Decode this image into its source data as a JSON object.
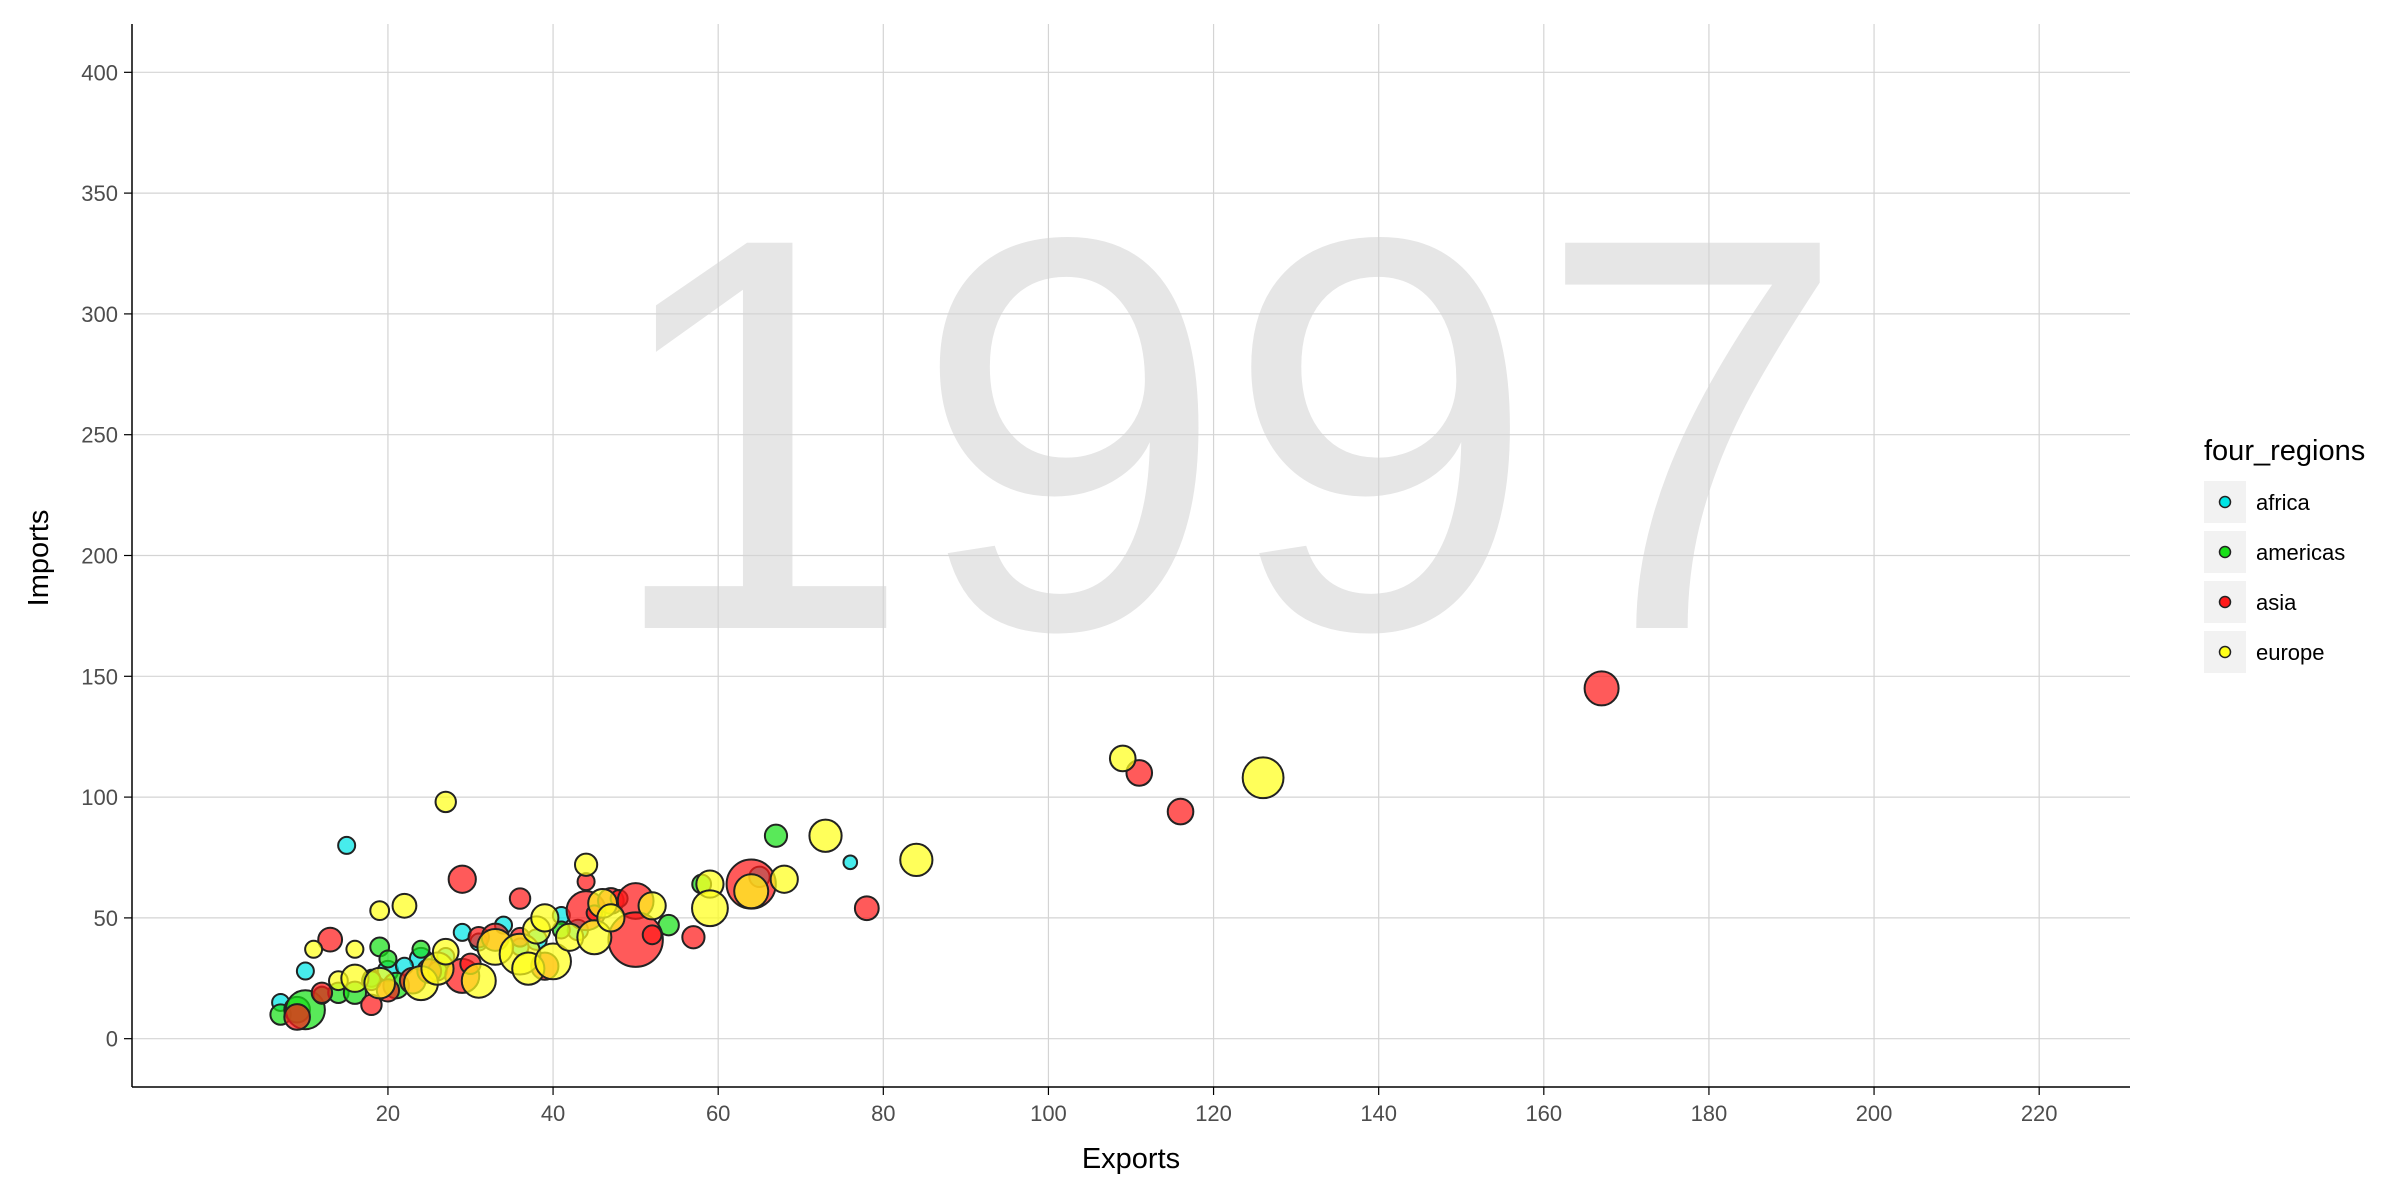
{
  "chart_data": {
    "type": "scatter",
    "year": "1997",
    "xlabel": "Exports",
    "ylabel": "Imports",
    "xlim": [
      -11,
      231
    ],
    "ylim": [
      -20,
      420
    ],
    "xticks": [
      20,
      40,
      60,
      80,
      100,
      120,
      140,
      160,
      180,
      200,
      220
    ],
    "yticks": [
      0,
      50,
      100,
      150,
      200,
      250,
      300,
      350,
      400
    ],
    "grid": true,
    "legend": {
      "title": "four_regions",
      "placement": "right"
    },
    "colors": {
      "africa": "#00e5e5",
      "americas": "#19e019",
      "asia": "#ff1a1a",
      "europe": "#ffff1a"
    },
    "series": [
      {
        "name": "africa",
        "color": "#00e5e5",
        "points": [
          {
            "x": 7,
            "y": 15,
            "s": 1
          },
          {
            "x": 10,
            "y": 28,
            "s": 1
          },
          {
            "x": 15,
            "y": 80,
            "s": 1
          },
          {
            "x": 20,
            "y": 28,
            "s": 1.2
          },
          {
            "x": 24,
            "y": 33,
            "s": 1.3
          },
          {
            "x": 29,
            "y": 44,
            "s": 1
          },
          {
            "x": 34,
            "y": 47,
            "s": 1
          },
          {
            "x": 38,
            "y": 41,
            "s": 1.2
          },
          {
            "x": 41,
            "y": 51,
            "s": 1
          },
          {
            "x": 43,
            "y": 45,
            "s": 1.2
          },
          {
            "x": 65,
            "y": 67,
            "s": 1.2
          },
          {
            "x": 76,
            "y": 73,
            "s": 0.8
          },
          {
            "x": 12,
            "y": 18,
            "s": 1
          },
          {
            "x": 18,
            "y": 25,
            "s": 1
          },
          {
            "x": 22,
            "y": 30,
            "s": 1
          },
          {
            "x": 27,
            "y": 34,
            "s": 1
          },
          {
            "x": 31,
            "y": 40,
            "s": 1
          },
          {
            "x": 36,
            "y": 38,
            "s": 1
          }
        ]
      },
      {
        "name": "americas",
        "color": "#19e019",
        "points": [
          {
            "x": 7,
            "y": 10,
            "s": 1.2
          },
          {
            "x": 9,
            "y": 12,
            "s": 1.5
          },
          {
            "x": 10,
            "y": 12,
            "s": 2.3
          },
          {
            "x": 12,
            "y": 18,
            "s": 1
          },
          {
            "x": 14,
            "y": 19,
            "s": 1.2
          },
          {
            "x": 16,
            "y": 19,
            "s": 1.3
          },
          {
            "x": 19,
            "y": 38,
            "s": 1.1
          },
          {
            "x": 20,
            "y": 33,
            "s": 1
          },
          {
            "x": 21,
            "y": 22,
            "s": 1.5
          },
          {
            "x": 24,
            "y": 37,
            "s": 1
          },
          {
            "x": 41,
            "y": 45,
            "s": 1
          },
          {
            "x": 54,
            "y": 47,
            "s": 1.2
          },
          {
            "x": 58,
            "y": 64,
            "s": 1.1
          },
          {
            "x": 67,
            "y": 84,
            "s": 1.3
          },
          {
            "x": 18,
            "y": 24,
            "s": 1.1
          },
          {
            "x": 26,
            "y": 28,
            "s": 1.1
          }
        ]
      },
      {
        "name": "asia",
        "color": "#ff1a1a",
        "points": [
          {
            "x": 9,
            "y": 9,
            "s": 1.5
          },
          {
            "x": 12,
            "y": 19,
            "s": 1.2
          },
          {
            "x": 13,
            "y": 41,
            "s": 1.4
          },
          {
            "x": 18,
            "y": 14,
            "s": 1.2
          },
          {
            "x": 20,
            "y": 20,
            "s": 1.3
          },
          {
            "x": 23,
            "y": 24,
            "s": 1.5
          },
          {
            "x": 25,
            "y": 28,
            "s": 1.4
          },
          {
            "x": 29,
            "y": 66,
            "s": 1.6
          },
          {
            "x": 29,
            "y": 26,
            "s": 2
          },
          {
            "x": 30,
            "y": 31,
            "s": 1.2
          },
          {
            "x": 31,
            "y": 42,
            "s": 1.2
          },
          {
            "x": 33,
            "y": 42,
            "s": 1.6
          },
          {
            "x": 36,
            "y": 42,
            "s": 1.1
          },
          {
            "x": 36,
            "y": 58,
            "s": 1.2
          },
          {
            "x": 39,
            "y": 30,
            "s": 1.6
          },
          {
            "x": 44,
            "y": 65,
            "s": 1
          },
          {
            "x": 44,
            "y": 53,
            "s": 2.3
          },
          {
            "x": 45,
            "y": 52,
            "s": 0.9
          },
          {
            "x": 47,
            "y": 57,
            "s": 1.5
          },
          {
            "x": 48,
            "y": 58,
            "s": 1
          },
          {
            "x": 50,
            "y": 57,
            "s": 2.1
          },
          {
            "x": 50,
            "y": 41,
            "s": 3.2
          },
          {
            "x": 52,
            "y": 43,
            "s": 1.1
          },
          {
            "x": 57,
            "y": 42,
            "s": 1.3
          },
          {
            "x": 64,
            "y": 64,
            "s": 2.9
          },
          {
            "x": 78,
            "y": 54,
            "s": 1.4
          },
          {
            "x": 111,
            "y": 110,
            "s": 1.5
          },
          {
            "x": 116,
            "y": 94,
            "s": 1.5
          },
          {
            "x": 167,
            "y": 145,
            "s": 2
          }
        ]
      },
      {
        "name": "europe",
        "color": "#ffff1a",
        "points": [
          {
            "x": 11,
            "y": 37,
            "s": 1
          },
          {
            "x": 14,
            "y": 24,
            "s": 1.1
          },
          {
            "x": 16,
            "y": 37,
            "s": 1
          },
          {
            "x": 16,
            "y": 25,
            "s": 1.6
          },
          {
            "x": 19,
            "y": 53,
            "s": 1.1
          },
          {
            "x": 19,
            "y": 23,
            "s": 1.8
          },
          {
            "x": 22,
            "y": 55,
            "s": 1.4
          },
          {
            "x": 24,
            "y": 23,
            "s": 2
          },
          {
            "x": 26,
            "y": 29,
            "s": 1.9
          },
          {
            "x": 27,
            "y": 98,
            "s": 1.2
          },
          {
            "x": 27,
            "y": 36,
            "s": 1.5
          },
          {
            "x": 31,
            "y": 24,
            "s": 2
          },
          {
            "x": 33,
            "y": 38,
            "s": 2.1
          },
          {
            "x": 36,
            "y": 35,
            "s": 2.4
          },
          {
            "x": 37,
            "y": 29,
            "s": 1.9
          },
          {
            "x": 38,
            "y": 45,
            "s": 1.6
          },
          {
            "x": 39,
            "y": 50,
            "s": 1.6
          },
          {
            "x": 40,
            "y": 32,
            "s": 2.1
          },
          {
            "x": 42,
            "y": 42,
            "s": 1.6
          },
          {
            "x": 44,
            "y": 72,
            "s": 1.3
          },
          {
            "x": 45,
            "y": 42,
            "s": 2
          },
          {
            "x": 46,
            "y": 56,
            "s": 1.7
          },
          {
            "x": 47,
            "y": 50,
            "s": 1.6
          },
          {
            "x": 52,
            "y": 55,
            "s": 1.6
          },
          {
            "x": 59,
            "y": 64,
            "s": 1.6
          },
          {
            "x": 59,
            "y": 54,
            "s": 2.1
          },
          {
            "x": 64,
            "y": 61,
            "s": 2
          },
          {
            "x": 68,
            "y": 66,
            "s": 1.6
          },
          {
            "x": 73,
            "y": 84,
            "s": 1.9
          },
          {
            "x": 84,
            "y": 74,
            "s": 1.9
          },
          {
            "x": 109,
            "y": 116,
            "s": 1.5
          },
          {
            "x": 126,
            "y": 108,
            "s": 2.4
          }
        ]
      }
    ]
  }
}
